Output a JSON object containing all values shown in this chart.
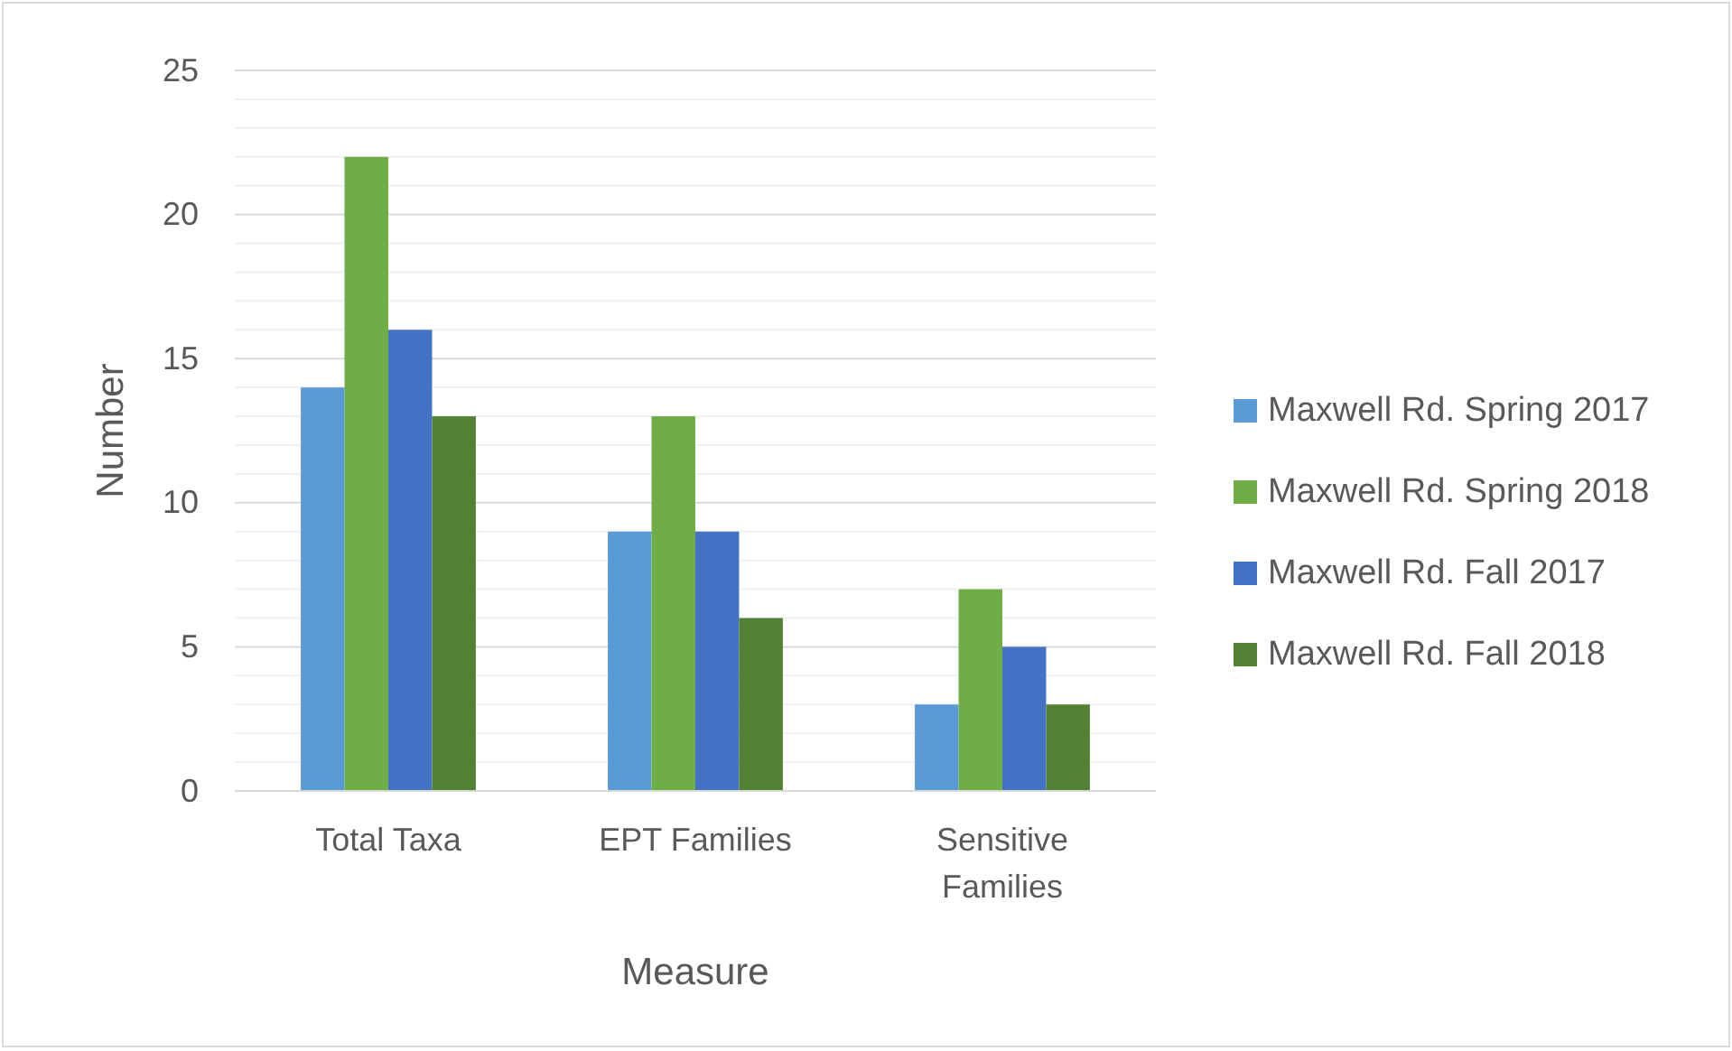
{
  "chart_data": {
    "type": "bar",
    "xlabel": "Measure",
    "ylabel": "Number",
    "categories": [
      "Total Taxa",
      "EPT Families",
      "Sensitive Families"
    ],
    "series": [
      {
        "name": "Maxwell Rd. Spring 2017",
        "color": "#5b9bd5",
        "values": [
          14,
          9,
          3
        ]
      },
      {
        "name": "Maxwell Rd. Spring 2018",
        "color": "#70ad47",
        "values": [
          22,
          13,
          7
        ]
      },
      {
        "name": "Maxwell Rd. Fall 2017",
        "color": "#4472c4",
        "values": [
          16,
          9,
          5
        ]
      },
      {
        "name": "Maxwell Rd. Fall 2018",
        "color": "#548235",
        "values": [
          13,
          6,
          3
        ]
      }
    ],
    "ylim": [
      0,
      25
    ],
    "yticks": [
      0,
      {
        "value": 1,
        "label": null
      },
      {
        "value": 2,
        "label": null
      },
      {
        "value": 3,
        "label": null
      },
      {
        "value": 4,
        "label": null
      },
      5,
      {
        "value": 6,
        "label": null
      },
      {
        "value": 7,
        "label": null
      },
      {
        "value": 8,
        "label": null
      },
      {
        "value": 9,
        "label": null
      },
      10,
      {
        "value": 11,
        "label": null
      },
      {
        "value": 12,
        "label": null
      },
      {
        "value": 13,
        "label": null
      },
      {
        "value": 14,
        "label": null
      },
      15,
      {
        "value": 16,
        "label": null
      },
      {
        "value": 17,
        "label": null
      },
      {
        "value": 18,
        "label": null
      },
      {
        "value": 19,
        "label": null
      },
      20,
      {
        "value": 21,
        "label": null
      },
      {
        "value": 22,
        "label": null
      },
      {
        "value": 23,
        "label": null
      },
      {
        "value": 24,
        "label": null
      },
      25
    ],
    "grid": true,
    "legend": "right"
  }
}
